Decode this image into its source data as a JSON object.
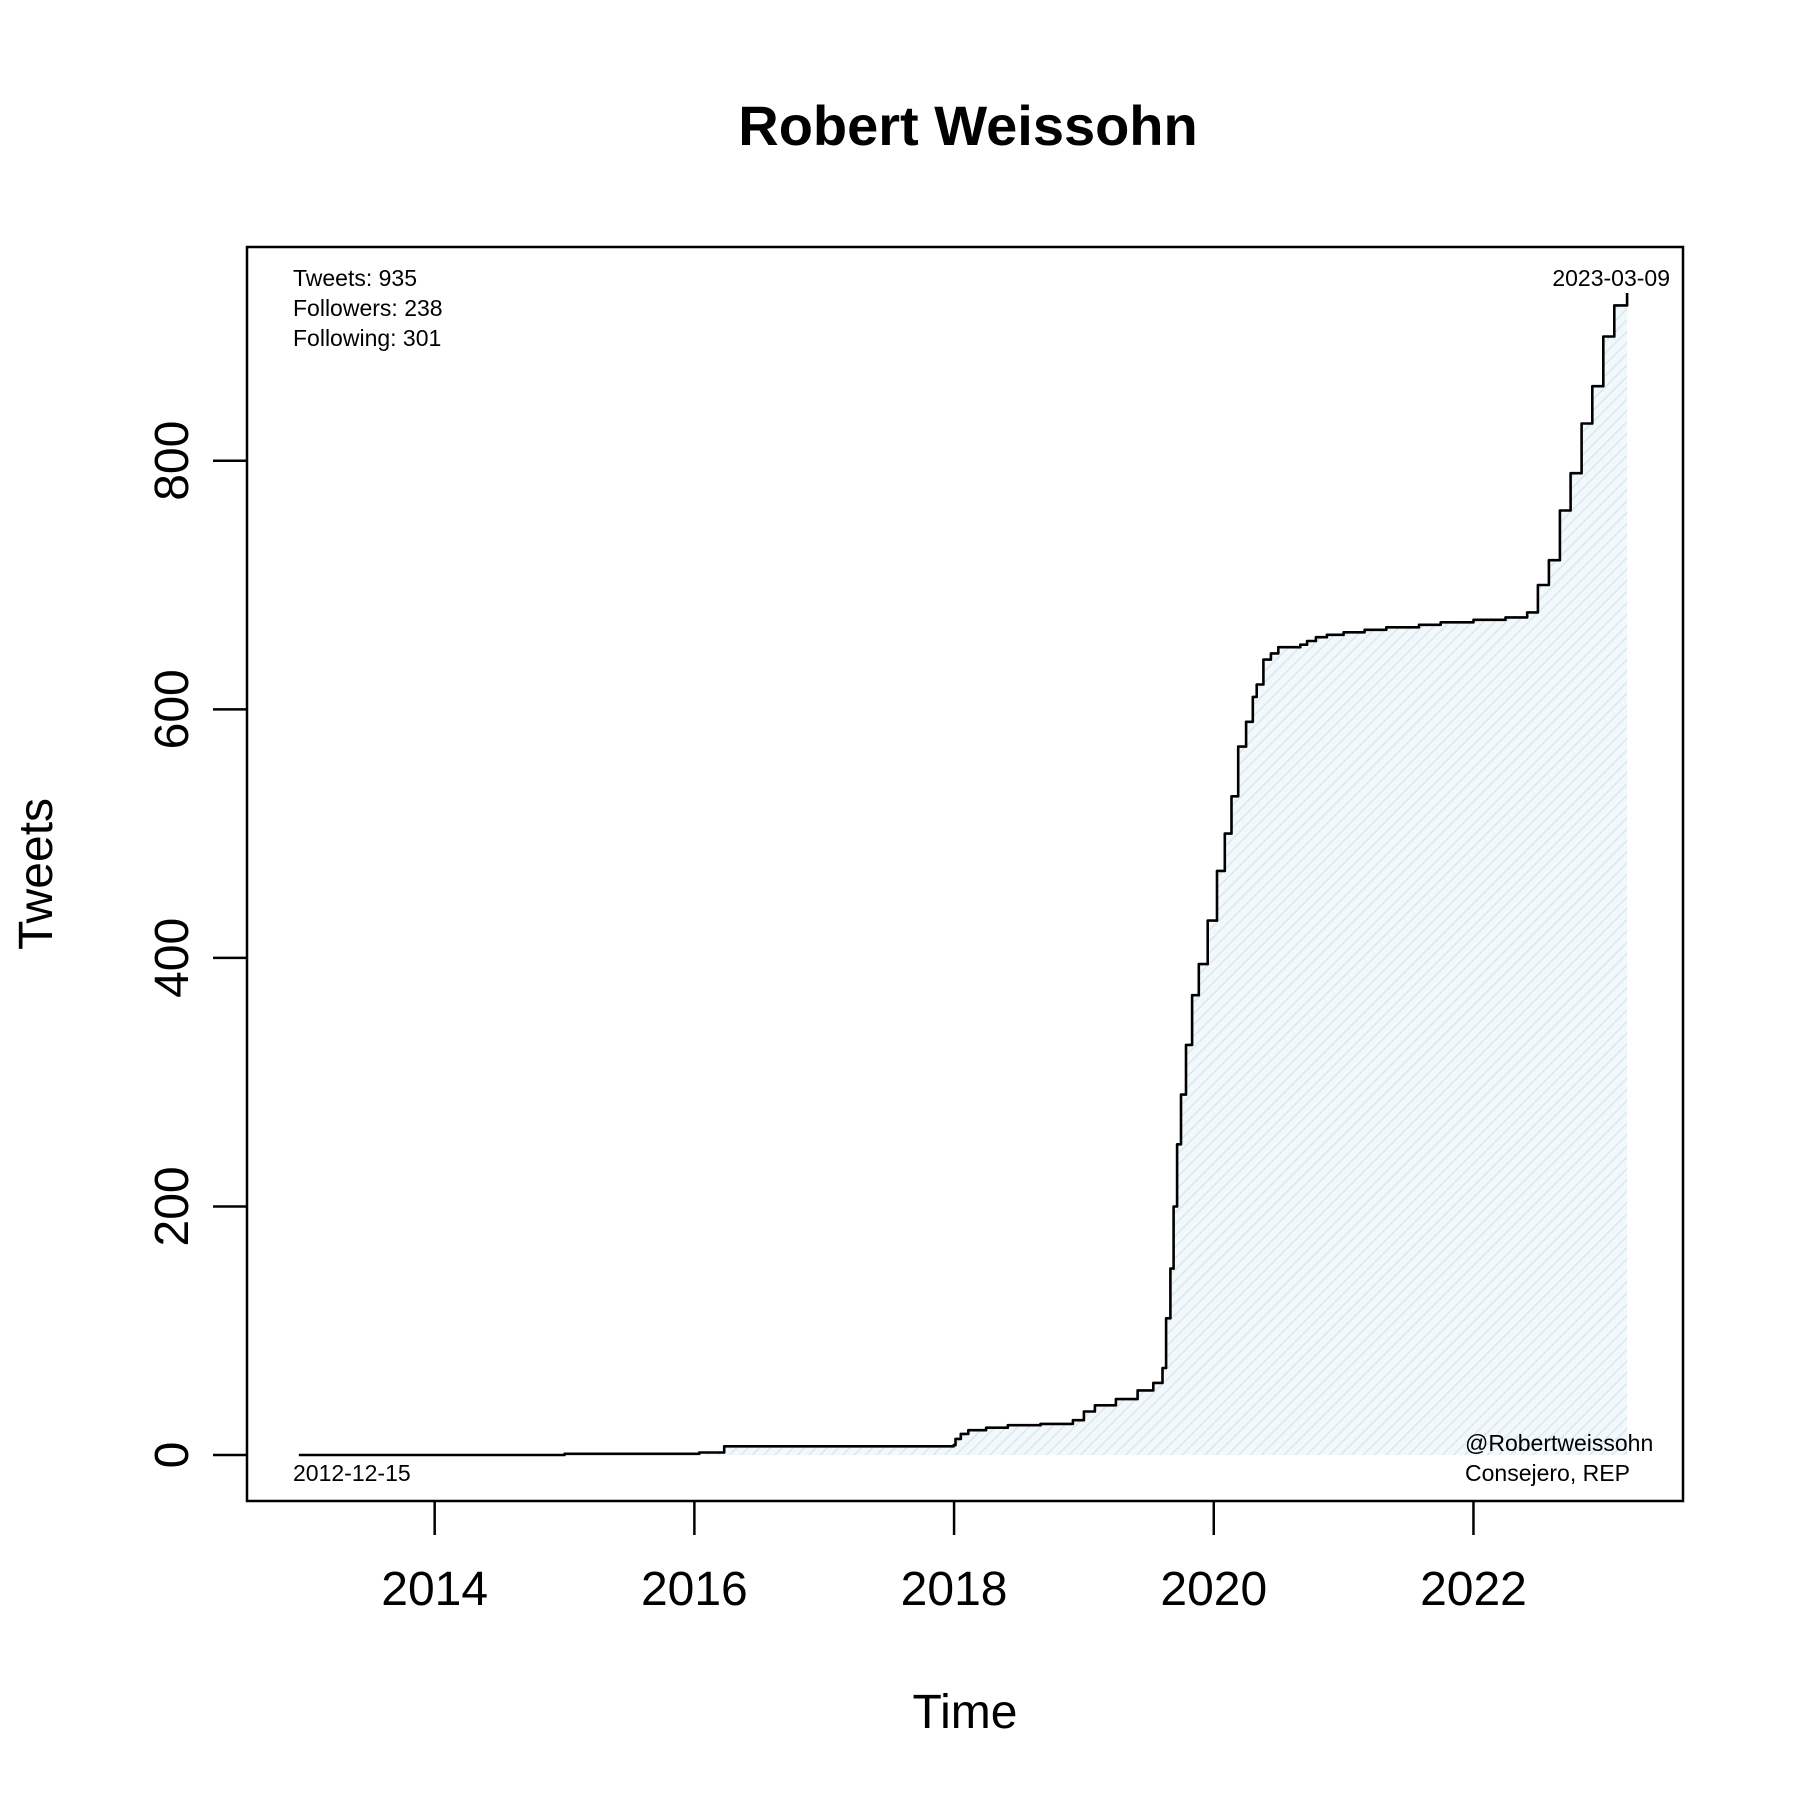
{
  "chart_data": {
    "type": "line",
    "title": "Robert Weissohn",
    "xlabel": "Time",
    "ylabel": "Tweets",
    "x_ticks": [
      "2014",
      "2016",
      "2018",
      "2020",
      "2022"
    ],
    "y_ticks": [
      0,
      200,
      400,
      600,
      800
    ],
    "xlim": [
      "2012-07-22",
      "2023-08-13"
    ],
    "ylim": [
      -37,
      972
    ],
    "grid": false,
    "fill": "hatched light blue under curve",
    "line_color": "#000000",
    "fill_color": "#d7e9f2",
    "series": [
      {
        "x": [
          "2012-12-15",
          "2013-06-01",
          "2014-01-01",
          "2015-01-01",
          "2015-06-15",
          "2016-01-15",
          "2016-03-20",
          "2016-03-25",
          "2017-01-01",
          "2017-06-01",
          "2017-12-31",
          "2018-01-05",
          "2018-01-20",
          "2018-02-10",
          "2018-04-01",
          "2018-06-01",
          "2018-07-01",
          "2018-09-01",
          "2018-12-01",
          "2019-01-01",
          "2019-02-01",
          "2019-04-01",
          "2019-06-01",
          "2019-07-15",
          "2019-08-10",
          "2019-08-20",
          "2019-09-01",
          "2019-09-10",
          "2019-09-20",
          "2019-10-01",
          "2019-10-15",
          "2019-11-01",
          "2019-11-20",
          "2019-12-15",
          "2020-01-10",
          "2020-02-01",
          "2020-02-20",
          "2020-03-10",
          "2020-04-01",
          "2020-04-20",
          "2020-05-01",
          "2020-05-20",
          "2020-06-10",
          "2020-07-01",
          "2020-08-01",
          "2020-09-01",
          "2020-09-20",
          "2020-10-15",
          "2020-11-15",
          "2021-01-01",
          "2021-03-01",
          "2021-05-01",
          "2021-08-01",
          "2021-10-01",
          "2022-01-01",
          "2022-04-01",
          "2022-06-01",
          "2022-07-01",
          "2022-08-01",
          "2022-09-01",
          "2022-10-01",
          "2022-11-01",
          "2022-12-01",
          "2023-01-01",
          "2023-02-01",
          "2023-03-09"
        ],
        "y": [
          0,
          0,
          0,
          1,
          1,
          2,
          2,
          7,
          7,
          7,
          8,
          13,
          17,
          20,
          22,
          24,
          24,
          25,
          28,
          35,
          40,
          45,
          52,
          58,
          70,
          110,
          150,
          200,
          250,
          290,
          330,
          370,
          395,
          430,
          470,
          500,
          530,
          570,
          590,
          610,
          620,
          640,
          645,
          650,
          650,
          652,
          655,
          658,
          660,
          662,
          664,
          666,
          668,
          670,
          672,
          674,
          678,
          700,
          720,
          760,
          790,
          830,
          860,
          900,
          925,
          935
        ]
      }
    ],
    "annotations": {
      "tweets": "Tweets: 935",
      "followers": "Followers: 238",
      "following": "Following: 301",
      "start_date": "2012-12-15",
      "end_date": "2023-03-09",
      "handle": "@Robertweissohn",
      "role": "Consejero, REP"
    }
  }
}
